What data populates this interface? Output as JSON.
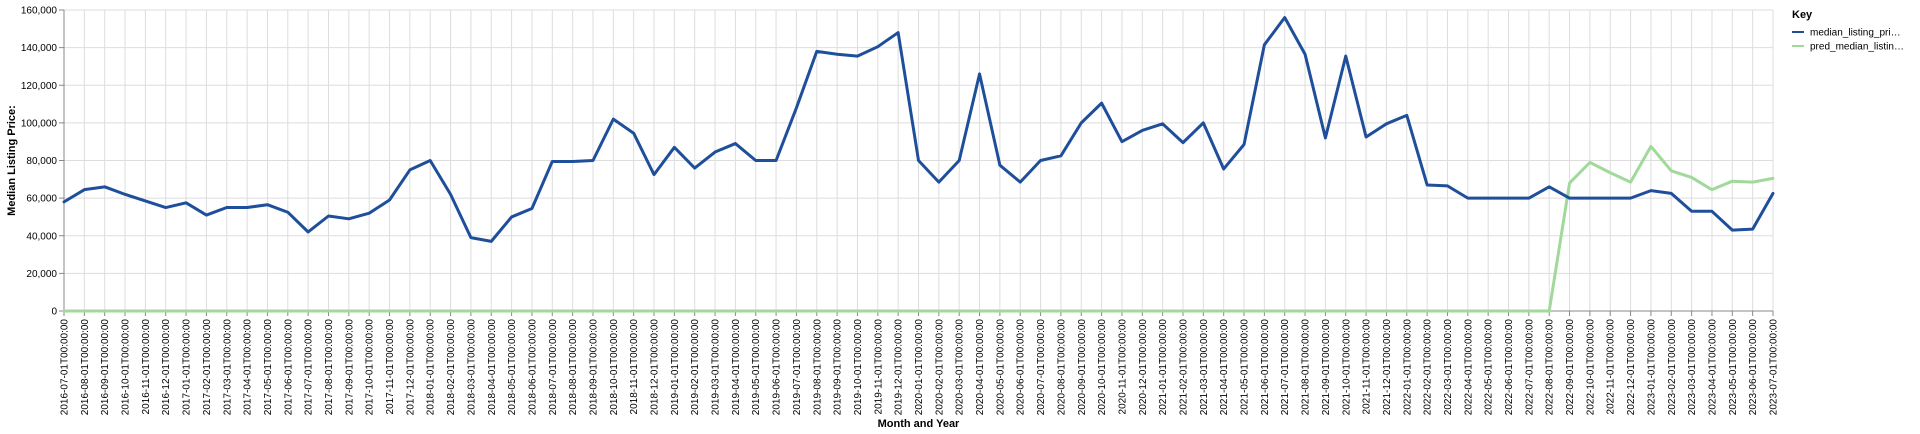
{
  "chart_data": {
    "type": "line",
    "xlabel": "Month and Year",
    "ylabel": "Median Listing Price:",
    "ylim": [
      0,
      160000
    ],
    "yticks": [
      0,
      20000,
      40000,
      60000,
      80000,
      100000,
      120000,
      140000,
      160000
    ],
    "ytick_labels": [
      "0",
      "20,000",
      "40,000",
      "60,000",
      "80,000",
      "100,000",
      "120,000",
      "140,000",
      "160,000"
    ],
    "grid": true,
    "legend": {
      "title": "Key",
      "position": "top-right"
    },
    "x": [
      "2016-07-01T00:00:00",
      "2016-08-01T00:00:00",
      "2016-09-01T00:00:00",
      "2016-10-01T00:00:00",
      "2016-11-01T00:00:00",
      "2016-12-01T00:00:00",
      "2017-01-01T00:00:00",
      "2017-02-01T00:00:00",
      "2017-03-01T00:00:00",
      "2017-04-01T00:00:00",
      "2017-05-01T00:00:00",
      "2017-06-01T00:00:00",
      "2017-07-01T00:00:00",
      "2017-08-01T00:00:00",
      "2017-09-01T00:00:00",
      "2017-10-01T00:00:00",
      "2017-11-01T00:00:00",
      "2017-12-01T00:00:00",
      "2018-01-01T00:00:00",
      "2018-02-01T00:00:00",
      "2018-03-01T00:00:00",
      "2018-04-01T00:00:00",
      "2018-05-01T00:00:00",
      "2018-06-01T00:00:00",
      "2018-07-01T00:00:00",
      "2018-08-01T00:00:00",
      "2018-09-01T00:00:00",
      "2018-10-01T00:00:00",
      "2018-11-01T00:00:00",
      "2018-12-01T00:00:00",
      "2019-01-01T00:00:00",
      "2019-02-01T00:00:00",
      "2019-03-01T00:00:00",
      "2019-04-01T00:00:00",
      "2019-05-01T00:00:00",
      "2019-06-01T00:00:00",
      "2019-07-01T00:00:00",
      "2019-08-01T00:00:00",
      "2019-09-01T00:00:00",
      "2019-10-01T00:00:00",
      "2019-11-01T00:00:00",
      "2019-12-01T00:00:00",
      "2020-01-01T00:00:00",
      "2020-02-01T00:00:00",
      "2020-03-01T00:00:00",
      "2020-04-01T00:00:00",
      "2020-05-01T00:00:00",
      "2020-06-01T00:00:00",
      "2020-07-01T00:00:00",
      "2020-08-01T00:00:00",
      "2020-09-01T00:00:00",
      "2020-10-01T00:00:00",
      "2020-11-01T00:00:00",
      "2020-12-01T00:00:00",
      "2021-01-01T00:00:00",
      "2021-02-01T00:00:00",
      "2021-03-01T00:00:00",
      "2021-04-01T00:00:00",
      "2021-05-01T00:00:00",
      "2021-06-01T00:00:00",
      "2021-07-01T00:00:00",
      "2021-08-01T00:00:00",
      "2021-09-01T00:00:00",
      "2021-10-01T00:00:00",
      "2021-11-01T00:00:00",
      "2021-12-01T00:00:00",
      "2022-01-01T00:00:00",
      "2022-02-01T00:00:00",
      "2022-03-01T00:00:00",
      "2022-04-01T00:00:00",
      "2022-05-01T00:00:00",
      "2022-06-01T00:00:00",
      "2022-07-01T00:00:00",
      "2022-08-01T00:00:00",
      "2022-09-01T00:00:00",
      "2022-10-01T00:00:00",
      "2022-11-01T00:00:00",
      "2022-12-01T00:00:00",
      "2023-01-01T00:00:00",
      "2023-02-01T00:00:00",
      "2023-03-01T00:00:00",
      "2023-04-01T00:00:00",
      "2023-05-01T00:00:00",
      "2023-06-01T00:00:00",
      "2023-07-01T00:00:00"
    ],
    "series": [
      {
        "name": "median_listing_pri…",
        "color": "#1f4e9a",
        "values": [
          58000,
          64500,
          66000,
          62000,
          58500,
          55000,
          57500,
          51000,
          55000,
          55000,
          56500,
          52500,
          42000,
          50500,
          49000,
          52000,
          59000,
          75000,
          80000,
          62000,
          39000,
          37000,
          50000,
          54500,
          79500,
          79500,
          80000,
          102000,
          94500,
          72500,
          87000,
          76000,
          84500,
          89000,
          80000,
          80000,
          108000,
          138000,
          136500,
          135500,
          140500,
          148000,
          80000,
          68500,
          80000,
          126000,
          77500,
          68500,
          80000,
          82500,
          100000,
          110500,
          90000,
          96000,
          99500,
          89500,
          100000,
          75500,
          88500,
          141500,
          156000,
          136500,
          92000,
          135500,
          92500,
          99500,
          104000,
          67000,
          66500,
          60000,
          60000,
          60000,
          60000,
          66000,
          60000,
          60000,
          60000,
          60000,
          64000,
          62500,
          53000,
          53000,
          43000,
          43500,
          62500
        ]
      },
      {
        "name": "pred_median_listin…",
        "color": "#a1d99b",
        "values": [
          0,
          0,
          0,
          0,
          0,
          0,
          0,
          0,
          0,
          0,
          0,
          0,
          0,
          0,
          0,
          0,
          0,
          0,
          0,
          0,
          0,
          0,
          0,
          0,
          0,
          0,
          0,
          0,
          0,
          0,
          0,
          0,
          0,
          0,
          0,
          0,
          0,
          0,
          0,
          0,
          0,
          0,
          0,
          0,
          0,
          0,
          0,
          0,
          0,
          0,
          0,
          0,
          0,
          0,
          0,
          0,
          0,
          0,
          0,
          0,
          0,
          0,
          0,
          0,
          0,
          0,
          0,
          0,
          0,
          0,
          0,
          0,
          0,
          0,
          68000,
          79000,
          73500,
          68500,
          87500,
          74500,
          71000,
          64500,
          69000,
          68500,
          70500
        ]
      }
    ]
  }
}
